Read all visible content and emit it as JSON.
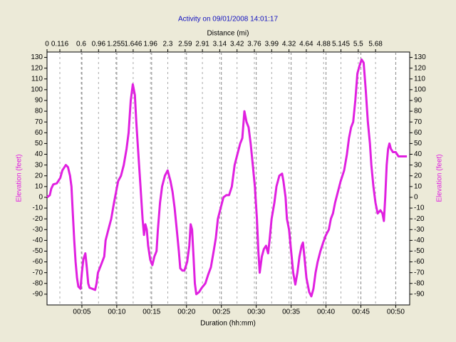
{
  "chart_data": {
    "type": "line",
    "title": "Activity on 09/01/2008 14:01:17",
    "x_label": "Duration (hh:mm)",
    "x2_label": "Distance (mi)",
    "y_label": "Elevation (feet)",
    "color": "#e020e0",
    "xlim": [
      0,
      52
    ],
    "ylim": [
      -100,
      135
    ],
    "xticks": [
      {
        "value": 5,
        "label": "00:05"
      },
      {
        "value": 10,
        "label": "00:10"
      },
      {
        "value": 15,
        "label": "00:15"
      },
      {
        "value": 20,
        "label": "00:20"
      },
      {
        "value": 25,
        "label": "00:25"
      },
      {
        "value": 30,
        "label": "00:30"
      },
      {
        "value": 35,
        "label": "00:35"
      },
      {
        "value": 40,
        "label": "00:40"
      },
      {
        "value": 45,
        "label": "00:45"
      },
      {
        "value": 50,
        "label": "00:50"
      }
    ],
    "x2ticks": [
      0,
      0.116,
      0.6,
      0.96,
      1.255,
      1.646,
      1.96,
      2.3,
      2.59,
      2.91,
      3.14,
      3.42,
      3.76,
      3.99,
      4.32,
      4.64,
      4.88,
      5.145,
      5.5,
      5.68
    ],
    "yticks": [
      -90,
      -80,
      -70,
      -60,
      -50,
      -40,
      -30,
      -20,
      -10,
      0,
      10,
      20,
      30,
      40,
      50,
      60,
      70,
      80,
      90,
      100,
      110,
      120,
      130
    ],
    "x": [
      0,
      0.4,
      0.6,
      0.9,
      1.4,
      1.9,
      2.2,
      2.7,
      3.0,
      3.3,
      3.5,
      3.7,
      3.9,
      4.1,
      4.3,
      4.5,
      4.8,
      5.0,
      5.2,
      5.5,
      5.7,
      5.9,
      6.1,
      6.5,
      6.9,
      7.1,
      7.3,
      7.8,
      8.2,
      8.4,
      8.8,
      9.2,
      9.6,
      9.9,
      10.2,
      10.6,
      11.0,
      11.4,
      11.7,
      12.0,
      12.3,
      12.6,
      12.8,
      13.1,
      13.4,
      13.7,
      13.9,
      14.1,
      14.3,
      14.5,
      14.8,
      15.1,
      15.4,
      15.7,
      15.9,
      16.2,
      16.5,
      16.9,
      17.3,
      17.7,
      18.0,
      18.3,
      18.6,
      18.9,
      19.1,
      19.4,
      19.7,
      20.1,
      20.4,
      20.6,
      20.8,
      21.0,
      21.2,
      21.4,
      21.8,
      22.2,
      22.7,
      23.1,
      23.5,
      23.9,
      24.2,
      24.5,
      24.9,
      25.3,
      25.7,
      26.1,
      26.5,
      26.9,
      27.3,
      27.7,
      28.0,
      28.3,
      28.6,
      28.9,
      29.2,
      29.5,
      29.8,
      30.1,
      30.3,
      30.5,
      30.8,
      31.1,
      31.4,
      31.7,
      31.9,
      32.2,
      32.6,
      32.9,
      33.3,
      33.7,
      33.9,
      34.2,
      34.4,
      34.7,
      35.0,
      35.3,
      35.6,
      35.9,
      36.2,
      36.5,
      36.7,
      36.9,
      37.2,
      37.6,
      37.9,
      38.2,
      38.5,
      38.8,
      39.2,
      39.6,
      40.0,
      40.4,
      40.7,
      41.0,
      41.3,
      41.7,
      42.1,
      42.6,
      43.0,
      43.3,
      43.6,
      43.9,
      44.2,
      44.5,
      44.8,
      45.1,
      45.4,
      45.7,
      46.0,
      46.3,
      46.5,
      46.8,
      47.1,
      47.4,
      47.8,
      48.1,
      48.3,
      48.5,
      48.7,
      48.9,
      49.1,
      49.3,
      49.6,
      50.0,
      50.4,
      50.9,
      51.6
    ],
    "values": [
      0,
      2,
      8,
      12,
      13,
      18,
      25,
      30,
      28,
      20,
      10,
      -15,
      -40,
      -60,
      -75,
      -83,
      -85,
      -70,
      -58,
      -52,
      -65,
      -80,
      -84,
      -85,
      -86,
      -80,
      -70,
      -62,
      -55,
      -40,
      -30,
      -20,
      -5,
      5,
      15,
      20,
      30,
      45,
      60,
      90,
      105,
      95,
      70,
      40,
      10,
      -20,
      -35,
      -25,
      -30,
      -45,
      -58,
      -63,
      -55,
      -50,
      -30,
      -5,
      10,
      20,
      25,
      15,
      5,
      -10,
      -30,
      -50,
      -66,
      -68,
      -68,
      -60,
      -45,
      -25,
      -30,
      -55,
      -80,
      -90,
      -88,
      -84,
      -80,
      -72,
      -65,
      -50,
      -38,
      -20,
      -10,
      0,
      2,
      2,
      10,
      30,
      40,
      50,
      55,
      80,
      70,
      65,
      50,
      30,
      10,
      -20,
      -50,
      -70,
      -55,
      -48,
      -45,
      -52,
      -40,
      -20,
      -5,
      10,
      20,
      22,
      15,
      0,
      -20,
      -30,
      -50,
      -70,
      -81,
      -70,
      -55,
      -45,
      -42,
      -55,
      -75,
      -88,
      -92,
      -85,
      -70,
      -60,
      -50,
      -42,
      -35,
      -30,
      -20,
      -15,
      -5,
      5,
      15,
      25,
      40,
      55,
      65,
      70,
      90,
      115,
      122,
      128,
      125,
      100,
      70,
      50,
      30,
      10,
      -5,
      -15,
      -12,
      -15,
      -22,
      0,
      30,
      45,
      50,
      45,
      42,
      42,
      38,
      38,
      38
    ]
  }
}
